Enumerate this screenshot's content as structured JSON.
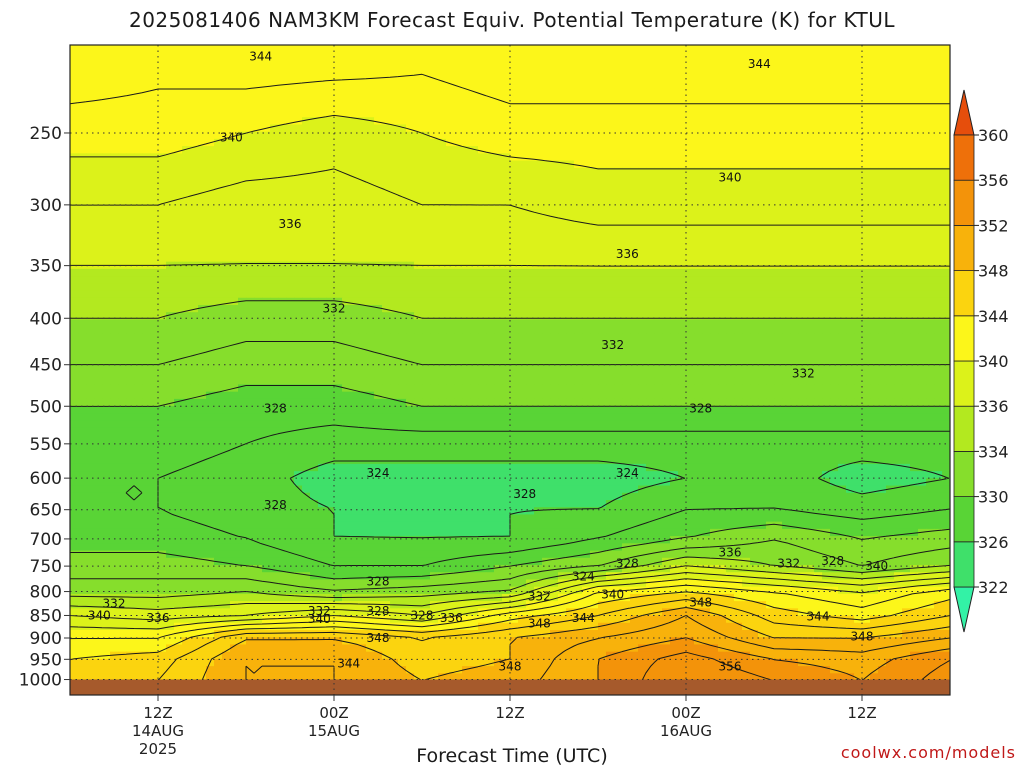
{
  "title": "2025081406 NAM3KM Forecast Equiv. Potential Temperature (K) for KTUL",
  "xlabel": "Forecast Time (UTC)",
  "watermark": "coolwx.com/models",
  "colors": {
    "ground": "#a65a2c",
    "contour": "#1a1a1a"
  },
  "chart_data": {
    "type": "heatmap",
    "title": "2025081406 NAM3KM Forecast Equiv. Potential Temperature (K) for KTUL",
    "xlabel": "Forecast Time (UTC)",
    "ylabel": "",
    "y_scale": "log",
    "y_inverted": true,
    "ylim": [
      1000,
      200
    ],
    "xlim_hours": [
      0,
      60
    ],
    "y_ticks": [
      250,
      300,
      350,
      400,
      450,
      500,
      550,
      600,
      650,
      700,
      750,
      800,
      850,
      900,
      950,
      1000
    ],
    "x_ticks": [
      {
        "hour": 6,
        "label": "12Z",
        "date": "14AUG",
        "year": "2025"
      },
      {
        "hour": 18,
        "label": "00Z",
        "date": "15AUG",
        "year": ""
      },
      {
        "hour": 30,
        "label": "12Z",
        "date": "",
        "year": ""
      },
      {
        "hour": 42,
        "label": "00Z",
        "date": "16AUG",
        "year": ""
      },
      {
        "hour": 54,
        "label": "12Z",
        "date": "",
        "year": ""
      }
    ],
    "colorbar": {
      "labels": [
        322,
        326,
        330,
        334,
        336,
        340,
        344,
        348,
        352,
        356,
        360
      ],
      "colors": [
        "#33f2a6",
        "#3fe06a",
        "#59d436",
        "#86de2c",
        "#b3e91f",
        "#dcf21a",
        "#fcf61a",
        "#fbd40f",
        "#f8b20b",
        "#f3930a",
        "#ee700a",
        "#e64e0c"
      ]
    },
    "time_hours": [
      0,
      6,
      12,
      18,
      24,
      30,
      36,
      42,
      48,
      54,
      60
    ],
    "levels_hpa": [
      200,
      250,
      300,
      350,
      400,
      450,
      500,
      550,
      600,
      650,
      700,
      750,
      800,
      850,
      900,
      950,
      1000
    ],
    "theta_e_K": [
      [
        344,
        343,
        344,
        344,
        343,
        344,
        344,
        344,
        344,
        344,
        344
      ],
      [
        341,
        341,
        340,
        339,
        340,
        341,
        341,
        341,
        341,
        341,
        341
      ],
      [
        338,
        338,
        337,
        337,
        338,
        338,
        339,
        339,
        339,
        339,
        339
      ],
      [
        336,
        336,
        336,
        336,
        336,
        336,
        336,
        336,
        336,
        336,
        336
      ],
      [
        334,
        334,
        333,
        333,
        334,
        334,
        334,
        334,
        334,
        334,
        334
      ],
      [
        332,
        332,
        331,
        331,
        332,
        332,
        332,
        332,
        332,
        332,
        332
      ],
      [
        330,
        330,
        329,
        329,
        330,
        330,
        330,
        330,
        330,
        330,
        330
      ],
      [
        329,
        329,
        328,
        327,
        327,
        327,
        327,
        327,
        327,
        327,
        327
      ],
      [
        328,
        328,
        327,
        325,
        325,
        325,
        325,
        326,
        327,
        325,
        326
      ],
      [
        328,
        328,
        327,
        326,
        325,
        326,
        326,
        328,
        328,
        327,
        328
      ],
      [
        329,
        329,
        328,
        326,
        326,
        326,
        328,
        330,
        332,
        330,
        331
      ],
      [
        331,
        331,
        330,
        328,
        328,
        330,
        332,
        336,
        334,
        332,
        334
      ],
      [
        333,
        333,
        334,
        332,
        333,
        334,
        342,
        344,
        342,
        340,
        343
      ],
      [
        338,
        337,
        338,
        340,
        338,
        343,
        346,
        350,
        345,
        343,
        346
      ],
      [
        342,
        342,
        348,
        348,
        346,
        348,
        350,
        352,
        348,
        348,
        350
      ],
      [
        344,
        345,
        350,
        350,
        347,
        348,
        352,
        355,
        352,
        351,
        354
      ],
      [
        345,
        346,
        350,
        350,
        348,
        349,
        352,
        356,
        354,
        352,
        355
      ]
    ],
    "contour_labels": [
      {
        "value": 344,
        "hour": 13,
        "hpa": 206
      },
      {
        "value": 344,
        "hour": 47,
        "hpa": 210
      },
      {
        "value": 340,
        "hour": 11,
        "hpa": 253
      },
      {
        "value": 340,
        "hour": 45,
        "hpa": 280
      },
      {
        "value": 336,
        "hour": 15,
        "hpa": 315
      },
      {
        "value": 336,
        "hour": 38,
        "hpa": 340
      },
      {
        "value": 332,
        "hour": 18,
        "hpa": 390
      },
      {
        "value": 332,
        "hour": 37,
        "hpa": 428
      },
      {
        "value": 332,
        "hour": 50,
        "hpa": 460
      },
      {
        "value": 328,
        "hour": 14,
        "hpa": 503
      },
      {
        "value": 328,
        "hour": 43,
        "hpa": 503
      },
      {
        "value": 328,
        "hour": 14,
        "hpa": 642
      },
      {
        "value": 324,
        "hour": 21,
        "hpa": 592
      },
      {
        "value": 324,
        "hour": 38,
        "hpa": 592
      },
      {
        "value": 328,
        "hour": 31,
        "hpa": 625
      },
      {
        "value": 332,
        "hour": 3,
        "hpa": 825
      },
      {
        "value": 336,
        "hour": 6,
        "hpa": 855
      },
      {
        "value": 340,
        "hour": 2,
        "hpa": 850
      },
      {
        "value": 332,
        "hour": 17,
        "hpa": 840
      },
      {
        "value": 340,
        "hour": 17,
        "hpa": 858
      },
      {
        "value": 328,
        "hour": 21,
        "hpa": 780
      },
      {
        "value": 328,
        "hour": 21,
        "hpa": 840
      },
      {
        "value": 348,
        "hour": 21,
        "hpa": 900
      },
      {
        "value": 344,
        "hour": 19,
        "hpa": 960
      },
      {
        "value": 328,
        "hour": 24,
        "hpa": 850
      },
      {
        "value": 336,
        "hour": 26,
        "hpa": 855
      },
      {
        "value": 332,
        "hour": 32,
        "hpa": 810
      },
      {
        "value": 348,
        "hour": 32,
        "hpa": 868
      },
      {
        "value": 344,
        "hour": 35,
        "hpa": 855
      },
      {
        "value": 324,
        "hour": 35,
        "hpa": 770
      },
      {
        "value": 340,
        "hour": 37,
        "hpa": 806
      },
      {
        "value": 328,
        "hour": 38,
        "hpa": 745
      },
      {
        "value": 348,
        "hour": 30,
        "hpa": 968
      },
      {
        "value": 348,
        "hour": 43,
        "hpa": 822
      },
      {
        "value": 356,
        "hour": 45,
        "hpa": 968
      },
      {
        "value": 336,
        "hour": 45,
        "hpa": 725
      },
      {
        "value": 332,
        "hour": 49,
        "hpa": 745
      },
      {
        "value": 328,
        "hour": 52,
        "hpa": 740
      },
      {
        "value": 340,
        "hour": 55,
        "hpa": 750
      },
      {
        "value": 344,
        "hour": 51,
        "hpa": 852
      },
      {
        "value": 348,
        "hour": 54,
        "hpa": 897
      }
    ]
  }
}
